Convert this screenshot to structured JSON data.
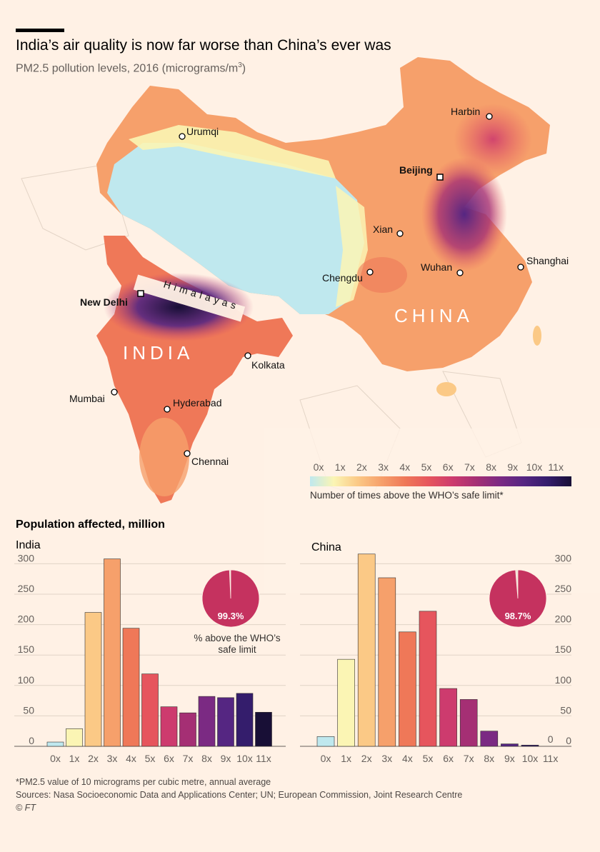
{
  "header": {
    "title": "India’s air quality is now far worse than China’s ever was",
    "subtitle": "PM2.5 pollution levels, 2016 (micrograms/m",
    "subtitle_sup": "3",
    "subtitle_close": ")"
  },
  "map": {
    "cities": [
      "Urumqi",
      "Beijing",
      "Harbin",
      "Xian",
      "Shanghai",
      "Chengdu",
      "Wuhan",
      "New Delhi",
      "Kolkata",
      "Mumbai",
      "Hyderabad",
      "Chennai"
    ],
    "feature_label": "Himalayas",
    "countries": [
      "INDIA",
      "CHINA"
    ]
  },
  "scale": {
    "ticks": [
      "0x",
      "1x",
      "2x",
      "3x",
      "4x",
      "5x",
      "6x",
      "7x",
      "8x",
      "9x",
      "10x",
      "11x"
    ],
    "title": "Number of times above the WHO’s safe limit*",
    "colors": [
      "#bfe8ee",
      "#fbf5b4",
      "#fbc986",
      "#f6a06b",
      "#ef7858",
      "#e6555d",
      "#cd3b6e",
      "#a52f74",
      "#7b2a83",
      "#552682",
      "#341d6c",
      "#180f36"
    ]
  },
  "population": {
    "title": "Population affected, million",
    "note": "% above the WHO’s safe limit"
  },
  "chart_data": [
    {
      "type": "bar",
      "title": "India",
      "categories": [
        "0x",
        "1x",
        "2x",
        "3x",
        "4x",
        "5x",
        "6x",
        "7x",
        "8x",
        "9x",
        "10x",
        "11x"
      ],
      "values": [
        7,
        29,
        220,
        308,
        194,
        119,
        65,
        55,
        82,
        80,
        87,
        56
      ],
      "ylim": [
        0,
        320
      ],
      "yticks": [
        "0",
        "50",
        "100",
        "150",
        "200",
        "250",
        "300"
      ],
      "grid": true,
      "pie": {
        "value": 99.3,
        "label": "99.3%"
      }
    },
    {
      "type": "bar",
      "title": "China",
      "categories": [
        "0x",
        "1x",
        "2x",
        "3x",
        "4x",
        "5x",
        "6x",
        "7x",
        "8x",
        "9x",
        "10x",
        "11x"
      ],
      "values": [
        16,
        143,
        316,
        277,
        188,
        222,
        95,
        77,
        25,
        4,
        2,
        0
      ],
      "zero_label": "0",
      "ylim": [
        0,
        320
      ],
      "yticks": [
        "0",
        "50",
        "100",
        "150",
        "200",
        "250",
        "300"
      ],
      "grid": true,
      "pie": {
        "value": 98.7,
        "label": "98.7%"
      }
    }
  ],
  "footer": {
    "footnote": "*PM2.5 value of 10 micrograms per cubic metre, annual average",
    "sources": "Sources: Nasa Socioeconomic Data and Applications Center; UN; European Commission, Joint Research Centre",
    "credit": "© FT"
  }
}
